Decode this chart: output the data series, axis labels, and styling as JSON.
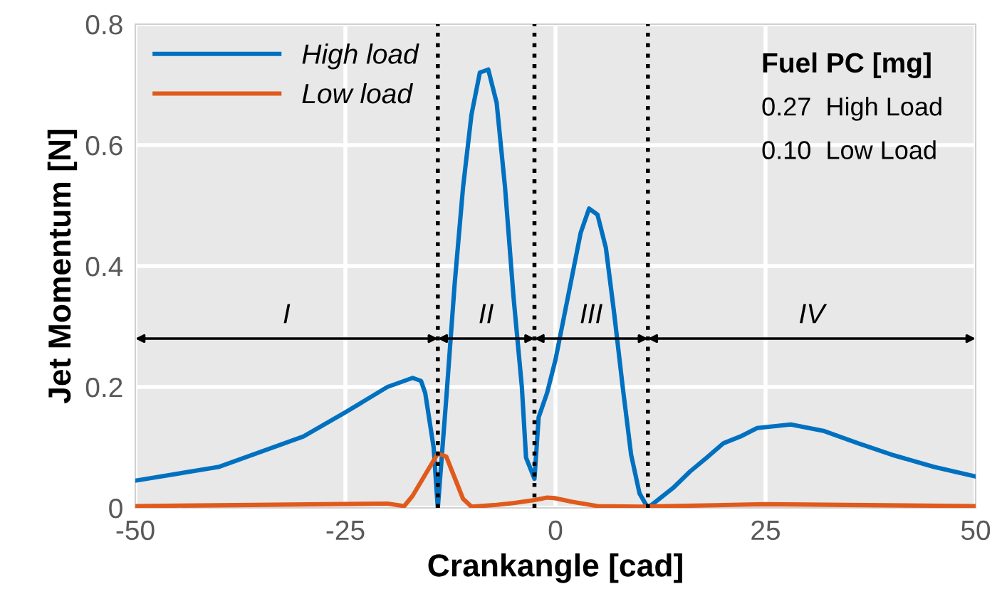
{
  "chart_data": {
    "type": "line",
    "xlabel": "Crankangle [cad]",
    "ylabel": "Jet Momentum [N]",
    "xlim": [
      -50,
      50
    ],
    "xticks": [
      -50,
      -25,
      0,
      25,
      50
    ],
    "ylim": [
      0,
      0.8
    ],
    "yticks": [
      0,
      0.2,
      0.4,
      0.6,
      0.8
    ],
    "grid": true,
    "legend": "top left",
    "line_style": "solid",
    "marker": "none",
    "series": [
      {
        "name": "High load",
        "color": "#0070c0",
        "x": [
          -50,
          -40,
          -30,
          -25,
          -20,
          -17,
          -16,
          -15.5,
          -14.5,
          -14,
          -13,
          -12,
          -11,
          -10,
          -9,
          -8,
          -7,
          -6,
          -5,
          -4,
          -3.5,
          -2.5,
          -2,
          -1,
          0,
          1,
          2,
          3,
          4,
          5,
          6,
          7,
          8,
          9,
          10,
          11,
          14,
          16,
          18,
          20,
          22,
          24,
          26,
          28,
          32,
          36,
          40,
          45,
          50
        ],
        "values": [
          0.045,
          0.068,
          0.118,
          0.158,
          0.2,
          0.215,
          0.21,
          0.19,
          0.1,
          0,
          0.18,
          0.37,
          0.53,
          0.65,
          0.72,
          0.725,
          0.67,
          0.53,
          0.35,
          0.2,
          0.083,
          0.048,
          0.15,
          0.19,
          0.245,
          0.315,
          0.385,
          0.455,
          0.495,
          0.485,
          0.43,
          0.32,
          0.2,
          0.088,
          0.024,
          0,
          0.033,
          0.06,
          0.083,
          0.107,
          0.118,
          0.132,
          0.135,
          0.138,
          0.127,
          0.107,
          0.088,
          0.068,
          0.052
        ]
      },
      {
        "name": "Low load",
        "color": "#e05a1c",
        "x": [
          -50,
          -20,
          -18,
          -17,
          -15.5,
          -14,
          -13,
          -12,
          -11,
          -10,
          -7,
          -5,
          -2.5,
          -1,
          0,
          2,
          5,
          10,
          25,
          50
        ],
        "values": [
          0.003,
          0.007,
          0.003,
          0.02,
          0.055,
          0.09,
          0.085,
          0.05,
          0.015,
          0.002,
          0.005,
          0.008,
          0.013,
          0.017,
          0.016,
          0.01,
          0.003,
          0.002,
          0.006,
          0.003
        ]
      }
    ],
    "ref_lines": [
      {
        "axis": "x",
        "value": -14,
        "color": "#000000",
        "line_style": "dotted"
      },
      {
        "axis": "x",
        "value": -2.5,
        "color": "#000000",
        "line_style": "dotted"
      },
      {
        "axis": "x",
        "value": 11,
        "color": "#000000",
        "line_style": "dotted"
      }
    ],
    "annotations": [
      "I",
      "II",
      "III",
      "IV",
      "Fuel PC [mg]",
      "0.27  High Load",
      "0.10  Low Load"
    ]
  }
}
